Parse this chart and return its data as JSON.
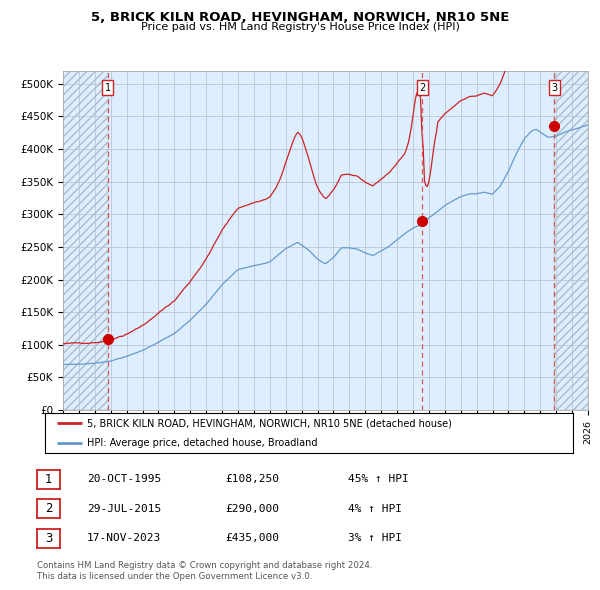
{
  "title": "5, BRICK KILN ROAD, HEVINGHAM, NORWICH, NR10 5NE",
  "subtitle": "Price paid vs. HM Land Registry's House Price Index (HPI)",
  "legend_line1": "5, BRICK KILN ROAD, HEVINGHAM, NORWICH, NR10 5NE (detached house)",
  "legend_line2": "HPI: Average price, detached house, Broadland",
  "vline_dates": [
    1995.81,
    2015.58,
    2023.88
  ],
  "sale_prices": [
    108250,
    290000,
    435000
  ],
  "sale_labels": [
    "1",
    "2",
    "3"
  ],
  "table_rows": [
    [
      "1",
      "20-OCT-1995",
      "£108,250",
      "45% ↑ HPI"
    ],
    [
      "2",
      "29-JUL-2015",
      "£290,000",
      "4% ↑ HPI"
    ],
    [
      "3",
      "17-NOV-2023",
      "£435,000",
      "3% ↑ HPI"
    ]
  ],
  "footnote1": "Contains HM Land Registry data © Crown copyright and database right 2024.",
  "footnote2": "This data is licensed under the Open Government Licence v3.0.",
  "xlim": [
    1993.0,
    2026.0
  ],
  "ylim": [
    0,
    520000
  ],
  "yticks": [
    0,
    50000,
    100000,
    150000,
    200000,
    250000,
    300000,
    350000,
    400000,
    450000,
    500000
  ],
  "ytick_labels": [
    "£0",
    "£50K",
    "£100K",
    "£150K",
    "£200K",
    "£250K",
    "£300K",
    "£350K",
    "£400K",
    "£450K",
    "£500K"
  ],
  "hpi_color": "#6699cc",
  "price_color": "#cc2222",
  "dot_color": "#cc0000",
  "bg_color": "#ddeeff",
  "grid_color": "#bbbbcc",
  "vline_color": "#dd4444",
  "hatch_color": "#aabbcc"
}
